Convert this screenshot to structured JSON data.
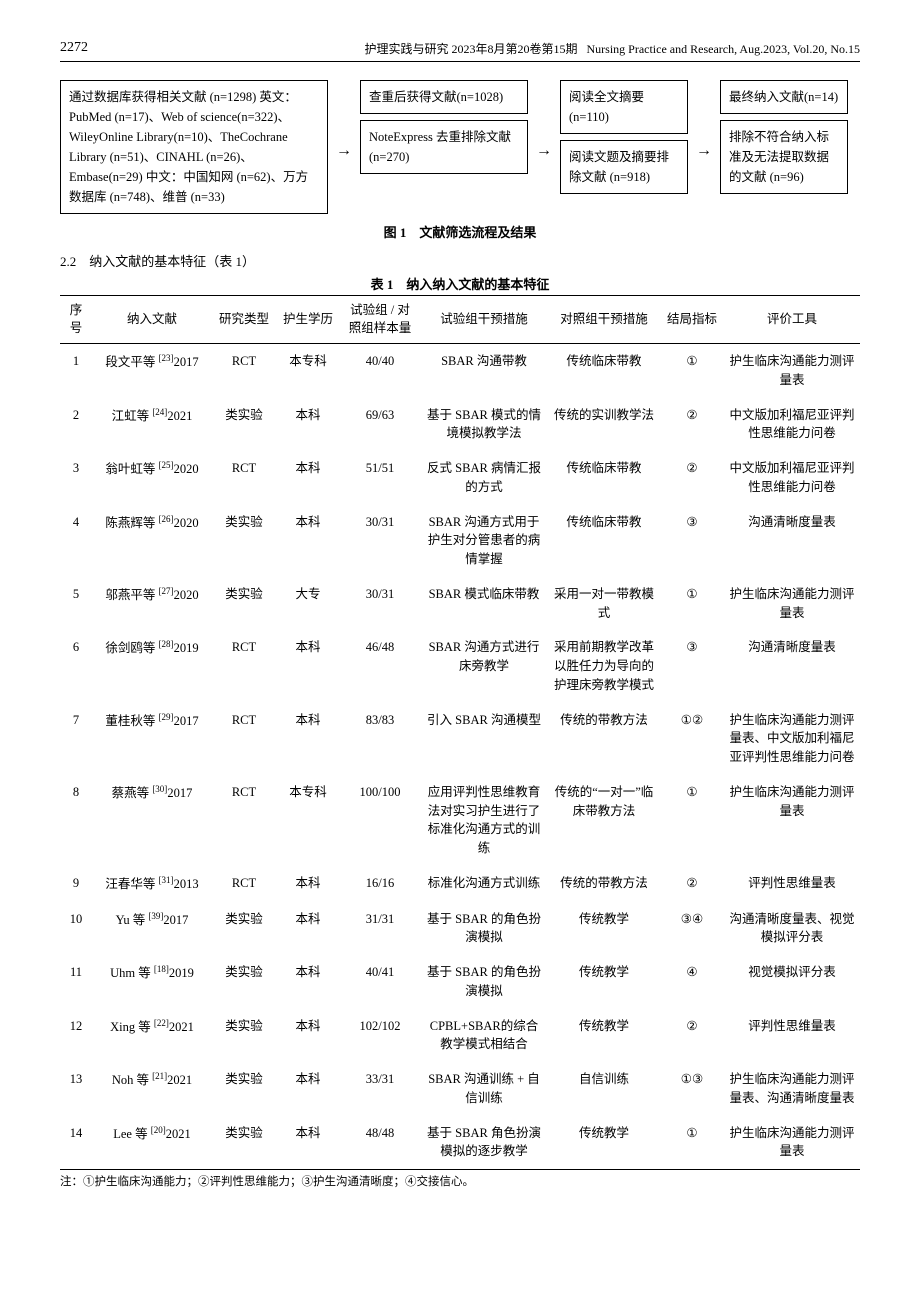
{
  "header": {
    "page_number": "2272",
    "journal_cn": "护理实践与研究  2023年8月第20卷第15期",
    "journal_en": "Nursing Practice and Research, Aug.2023, Vol.20, No.15"
  },
  "flowchart": {
    "source_box": "通过数据库获得相关文献 (n=1298) 英文：PubMed (n=17)、Web of science(n=322)、WileyOnline Library(n=10)、TheCochrane Library (n=51)、CINAHL (n=26)、Embase(n=29) 中文：中国知网 (n=62)、万方数据库 (n=748)、维普 (n=33)",
    "dedup_top": "查重后获得文献(n=1028)",
    "dedup_bottom": "NoteExpress 去重排除文献 (n=270)",
    "abstract_top": "阅读全文摘要(n=110)",
    "abstract_bottom": "阅读文题及摘要排除文献 (n=918)",
    "final_top": "最终纳入文献(n=14)",
    "final_bottom": "排除不符合纳入标准及无法提取数据的文献 (n=96)",
    "caption": "图 1　文献筛选流程及结果"
  },
  "section_heading": "2.2　纳入文献的基本特征（表 1）",
  "table": {
    "caption": "表 1　纳入纳入文献的基本特征",
    "columns": [
      "序号",
      "纳入文献",
      "研究类型",
      "护生学历",
      "试验组 / 对照组样本量",
      "试验组干预措施",
      "对照组干预措施",
      "结局指标",
      "评价工具"
    ],
    "rows": [
      {
        "num": "1",
        "ref": "段文平等 [23]2017",
        "type": "RCT",
        "edu": "本专科",
        "size": "40/40",
        "exp": "SBAR 沟通带教",
        "ctrl": "传统临床带教",
        "out": "①",
        "tool": "护生临床沟通能力测评量表"
      },
      {
        "num": "2",
        "ref": "江虹等 [24]2021",
        "type": "类实验",
        "edu": "本科",
        "size": "69/63",
        "exp": "基于 SBAR 模式的情境模拟教学法",
        "ctrl": "传统的实训教学法",
        "out": "②",
        "tool": "中文版加利福尼亚评判性思维能力问卷"
      },
      {
        "num": "3",
        "ref": "翁叶虹等 [25]2020",
        "type": "RCT",
        "edu": "本科",
        "size": "51/51",
        "exp": "反式 SBAR 病情汇报的方式",
        "ctrl": "传统临床带教",
        "out": "②",
        "tool": "中文版加利福尼亚评判性思维能力问卷"
      },
      {
        "num": "4",
        "ref": "陈燕辉等 [26]2020",
        "type": "类实验",
        "edu": "本科",
        "size": "30/31",
        "exp": "SBAR 沟通方式用于护生对分管患者的病情掌握",
        "ctrl": "传统临床带教",
        "out": "③",
        "tool": "沟通清晰度量表"
      },
      {
        "num": "5",
        "ref": "邬燕平等 [27]2020",
        "type": "类实验",
        "edu": "大专",
        "size": "30/31",
        "exp": "SBAR 模式临床带教",
        "ctrl": "采用一对一带教模式",
        "out": "①",
        "tool": "护生临床沟通能力测评量表"
      },
      {
        "num": "6",
        "ref": "徐剑鸥等 [28]2019",
        "type": "RCT",
        "edu": "本科",
        "size": "46/48",
        "exp": "SBAR 沟通方式进行床旁教学",
        "ctrl": "采用前期教学改革以胜任力为导向的护理床旁教学模式",
        "out": "③",
        "tool": "沟通清晰度量表"
      },
      {
        "num": "7",
        "ref": "董桂秋等 [29]2017",
        "type": "RCT",
        "edu": "本科",
        "size": "83/83",
        "exp": "引入 SBAR 沟通模型",
        "ctrl": "传统的带教方法",
        "out": "①②",
        "tool": "护生临床沟通能力测评量表、中文版加利福尼亚评判性思维能力问卷"
      },
      {
        "num": "8",
        "ref": "蔡燕等 [30]2017",
        "type": "RCT",
        "edu": "本专科",
        "size": "100/100",
        "exp": "应用评判性思维教育法对实习护生进行了标准化沟通方式的训练",
        "ctrl": "传统的“一对一”临床带教方法",
        "out": "①",
        "tool": "护生临床沟通能力测评量表"
      },
      {
        "num": "9",
        "ref": "汪春华等 [31]2013",
        "type": "RCT",
        "edu": "本科",
        "size": "16/16",
        "exp": "标准化沟通方式训练",
        "ctrl": "传统的带教方法",
        "out": "②",
        "tool": "评判性思维量表"
      },
      {
        "num": "10",
        "ref": "Yu 等 [39]2017",
        "type": "类实验",
        "edu": "本科",
        "size": "31/31",
        "exp": "基于 SBAR 的角色扮演模拟",
        "ctrl": "传统教学",
        "out": "③④",
        "tool": "沟通清晰度量表、视觉模拟评分表"
      },
      {
        "num": "11",
        "ref": "Uhm 等 [18]2019",
        "type": "类实验",
        "edu": "本科",
        "size": "40/41",
        "exp": "基于 SBAR 的角色扮演模拟",
        "ctrl": "传统教学",
        "out": "④",
        "tool": "视觉模拟评分表"
      },
      {
        "num": "12",
        "ref": "Xing 等 [22]2021",
        "type": "类实验",
        "edu": "本科",
        "size": "102/102",
        "exp": "CPBL+SBAR的综合教学模式相结合",
        "ctrl": "传统教学",
        "out": "②",
        "tool": "评判性思维量表"
      },
      {
        "num": "13",
        "ref": "Noh 等 [21]2021",
        "type": "类实验",
        "edu": "本科",
        "size": "33/31",
        "exp": "SBAR 沟通训练 + 自信训练",
        "ctrl": "自信训练",
        "out": "①③",
        "tool": "护生临床沟通能力测评量表、沟通清晰度量表"
      },
      {
        "num": "14",
        "ref": "Lee 等 [20]2021",
        "type": "类实验",
        "edu": "本科",
        "size": "48/48",
        "exp": "基于 SBAR 角色扮演模拟的逐步教学",
        "ctrl": "传统教学",
        "out": "①",
        "tool": "护生临床沟通能力测评量表"
      }
    ],
    "footnote": "注：①护生临床沟通能力；②评判性思维能力；③护生沟通清晰度；④交接信心。"
  }
}
